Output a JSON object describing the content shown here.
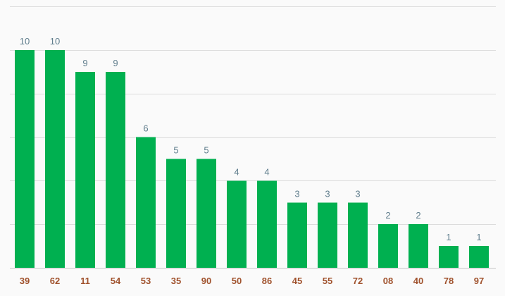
{
  "chart_data": {
    "type": "bar",
    "categories": [
      "39",
      "62",
      "11",
      "54",
      "53",
      "35",
      "90",
      "50",
      "86",
      "45",
      "55",
      "72",
      "08",
      "40",
      "78",
      "97"
    ],
    "values": [
      10,
      10,
      9,
      9,
      6,
      5,
      5,
      4,
      4,
      3,
      3,
      3,
      2,
      2,
      1,
      1
    ],
    "ylim": [
      0,
      12
    ],
    "grid": true,
    "bar_color": "#00b050",
    "value_label_color": "#5f7d8c",
    "category_label_color": "#a0522d",
    "grid_color": "#dcdcdc",
    "background": "#fafafa"
  }
}
